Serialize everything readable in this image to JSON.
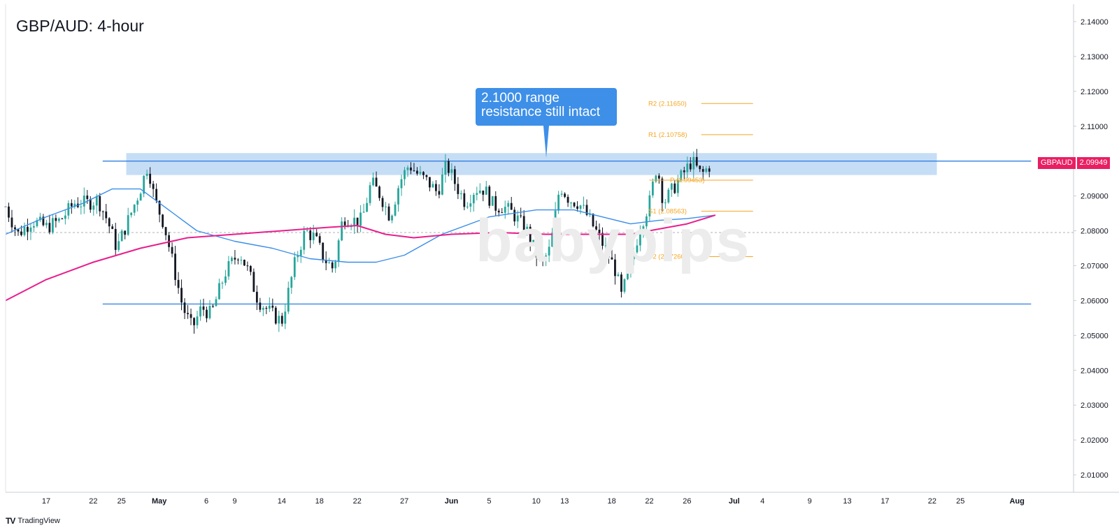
{
  "title": "GBP/AUD: 4-hour",
  "watermark": "babypips",
  "footer": {
    "brand": "TradingView",
    "brand_mark": "TV"
  },
  "callout": {
    "line1": "2.1000 range",
    "line2": "resistance still intact"
  },
  "price_tag": {
    "symbol": "GBPAUD",
    "value": "2.09949"
  },
  "colors": {
    "resistance_zone": "#bcd7f5",
    "range_line": "#2f7fe0",
    "ma_fast": "#3b8ee8",
    "ma_slow": "#e91e8c",
    "pivot": "#f5a623",
    "candle_up": "#26a69a",
    "candle_dn": "#131722",
    "price_tag": "#e91e63"
  },
  "chart_data": {
    "type": "candlestick",
    "title": "GBP/AUD: 4-hour",
    "ylim": [
      2.005,
      2.145
    ],
    "y_ticks": [
      "2.14000",
      "2.13000",
      "2.12000",
      "2.11000",
      "2.10000",
      "2.09000",
      "2.08000",
      "2.07000",
      "2.06000",
      "2.05000",
      "2.04000",
      "2.03000",
      "2.02000",
      "2.01000"
    ],
    "x_ticks": [
      {
        "label": "17",
        "day": 0
      },
      {
        "label": "22",
        "day": 5
      },
      {
        "label": "25",
        "day": 8
      },
      {
        "label": "May",
        "day": 12
      },
      {
        "label": "6",
        "day": 17
      },
      {
        "label": "9",
        "day": 20
      },
      {
        "label": "14",
        "day": 25
      },
      {
        "label": "18",
        "day": 29
      },
      {
        "label": "22",
        "day": 33
      },
      {
        "label": "27",
        "day": 38
      },
      {
        "label": "Jun",
        "day": 43
      },
      {
        "label": "5",
        "day": 47
      },
      {
        "label": "10",
        "day": 52
      },
      {
        "label": "13",
        "day": 55
      },
      {
        "label": "18",
        "day": 60
      },
      {
        "label": "22",
        "day": 64
      },
      {
        "label": "26",
        "day": 68
      },
      {
        "label": "Jul",
        "day": 73
      },
      {
        "label": "4",
        "day": 76
      },
      {
        "label": "9",
        "day": 81
      },
      {
        "label": "13",
        "day": 85
      },
      {
        "label": "17",
        "day": 89
      },
      {
        "label": "22",
        "day": 94
      },
      {
        "label": "25",
        "day": 97
      },
      {
        "label": "Aug",
        "day": 103
      }
    ],
    "xlim_days": [
      -4.3,
      109
    ],
    "range_levels": [
      2.1,
      2.059
    ],
    "resistance_zone": [
      2.096,
      2.1023
    ],
    "resistance_zone_days": [
      8.5,
      94.5
    ],
    "range_line_days": [
      6,
      104.5
    ],
    "reference_dotted": 2.0795,
    "pivots": [
      {
        "label": "R2 (2.11650)",
        "value": 2.1165
      },
      {
        "label": "R1 (2.10758)",
        "value": 2.10758
      },
      {
        "label": "P (2.09453)",
        "value": 2.09453
      },
      {
        "label": "S1 (2.08563)",
        "value": 2.08563
      },
      {
        "label": "S2 (2.07260)",
        "value": 2.0726
      }
    ],
    "pivot_days": [
      63,
      75
    ],
    "price_path": [
      [
        -4.3,
        2.087
      ],
      [
        -3,
        2.079
      ],
      [
        -1.5,
        2.083
      ],
      [
        0,
        2.081
      ],
      [
        1.5,
        2.083
      ],
      [
        3,
        2.088
      ],
      [
        4.5,
        2.088
      ],
      [
        5.5,
        2.089
      ],
      [
        6.5,
        2.083
      ],
      [
        7.5,
        2.075
      ],
      [
        9,
        2.085
      ],
      [
        10,
        2.092
      ],
      [
        10.8,
        2.099
      ],
      [
        11.5,
        2.089
      ],
      [
        12.5,
        2.082
      ],
      [
        13.5,
        2.07
      ],
      [
        14.5,
        2.058
      ],
      [
        15.5,
        2.052
      ],
      [
        16.5,
        2.058
      ],
      [
        17.5,
        2.056
      ],
      [
        19,
        2.068
      ],
      [
        20.5,
        2.074
      ],
      [
        21.5,
        2.068
      ],
      [
        22.5,
        2.06
      ],
      [
        24,
        2.056
      ],
      [
        25,
        2.054
      ],
      [
        25.5,
        2.06
      ],
      [
        26.5,
        2.072
      ],
      [
        27.5,
        2.08
      ],
      [
        28.5,
        2.078
      ],
      [
        29.5,
        2.072
      ],
      [
        30.5,
        2.069
      ],
      [
        31.5,
        2.084
      ],
      [
        32.5,
        2.083
      ],
      [
        33.5,
        2.083
      ],
      [
        34.5,
        2.094
      ],
      [
        35.5,
        2.09
      ],
      [
        36.5,
        2.084
      ],
      [
        37.5,
        2.094
      ],
      [
        38.5,
        2.099
      ],
      [
        39.5,
        2.096
      ],
      [
        40.5,
        2.094
      ],
      [
        41.5,
        2.091
      ],
      [
        42.5,
        2.099
      ],
      [
        43.5,
        2.093
      ],
      [
        44.5,
        2.088
      ],
      [
        45.5,
        2.092
      ],
      [
        46.5,
        2.092
      ],
      [
        47.5,
        2.087
      ],
      [
        48.5,
        2.087
      ],
      [
        49.5,
        2.085
      ],
      [
        51,
        2.08
      ],
      [
        52.5,
        2.07
      ],
      [
        53.5,
        2.075
      ],
      [
        54.5,
        2.093
      ],
      [
        55.5,
        2.089
      ],
      [
        56.5,
        2.088
      ],
      [
        57.5,
        2.084
      ],
      [
        58.5,
        2.079
      ],
      [
        59.5,
        2.074
      ],
      [
        60.5,
        2.068
      ],
      [
        61,
        2.061
      ],
      [
        62,
        2.07
      ],
      [
        63,
        2.081
      ],
      [
        64,
        2.088
      ],
      [
        64.8,
        2.099
      ],
      [
        65.5,
        2.088
      ],
      [
        66.5,
        2.092
      ],
      [
        67.5,
        2.096
      ],
      [
        68.5,
        2.1
      ],
      [
        69.5,
        2.096
      ],
      [
        70.5,
        2.099
      ]
    ],
    "series": [
      {
        "name": "",
        "kind": "ma_fast",
        "points": [
          [
            -4.3,
            2.079
          ],
          [
            0,
            2.084
          ],
          [
            4,
            2.088
          ],
          [
            7,
            2.092
          ],
          [
            10,
            2.092
          ],
          [
            13,
            2.086
          ],
          [
            16,
            2.08
          ],
          [
            20,
            2.077
          ],
          [
            24,
            2.075
          ],
          [
            28,
            2.072
          ],
          [
            32,
            2.071
          ],
          [
            35,
            2.071
          ],
          [
            38,
            2.073
          ],
          [
            42,
            2.079
          ],
          [
            47,
            2.084
          ],
          [
            52,
            2.086
          ],
          [
            56,
            2.086
          ],
          [
            59,
            2.084
          ],
          [
            62,
            2.082
          ],
          [
            65,
            2.083
          ],
          [
            68,
            2.0835
          ],
          [
            71,
            2.0845
          ]
        ]
      },
      {
        "name": "",
        "kind": "ma_slow",
        "points": [
          [
            -4.3,
            2.06
          ],
          [
            0,
            2.066
          ],
          [
            5,
            2.071
          ],
          [
            10,
            2.075
          ],
          [
            15,
            2.078
          ],
          [
            20,
            2.079
          ],
          [
            25,
            2.08
          ],
          [
            30,
            2.081
          ],
          [
            33,
            2.0815
          ],
          [
            36,
            2.079
          ],
          [
            39,
            2.078
          ],
          [
            43,
            2.079
          ],
          [
            48,
            2.0795
          ],
          [
            53,
            2.079
          ],
          [
            58,
            2.079
          ],
          [
            62,
            2.079
          ],
          [
            65,
            2.0805
          ],
          [
            68,
            2.082
          ],
          [
            71,
            2.0845
          ]
        ]
      }
    ]
  }
}
